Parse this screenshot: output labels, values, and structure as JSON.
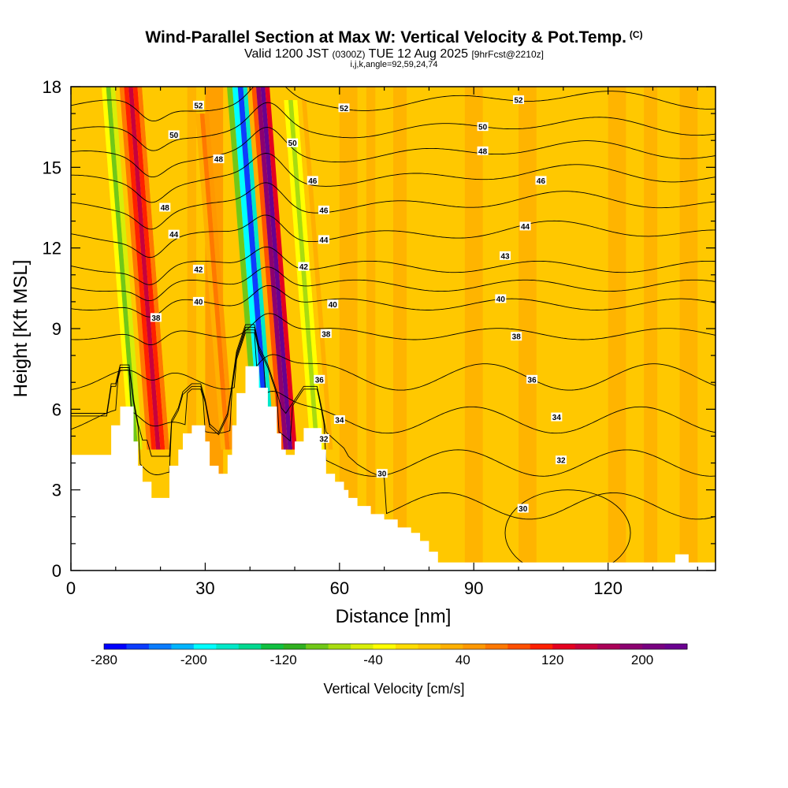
{
  "header": {
    "title": "Wind-Parallel Section at Max W: Vertical Velocity & Pot.Temp.",
    "copyright": "(C)",
    "valid_prefix": "Valid 1200 JST",
    "valid_utc": "(0300Z)",
    "valid_date": "TUE 12 Aug 2025",
    "forecast": "[9hrFcst@2210z]",
    "indices": "i,j,k,angle=92,59,24,74"
  },
  "chart_data": {
    "type": "heatmap",
    "title": "Wind-Parallel Section at Max W: Vertical Velocity & Pot.Temp.",
    "xlabel": "Distance [nm]",
    "ylabel": "Height [Kft MSL]",
    "xlim": [
      0,
      144
    ],
    "ylim": [
      0,
      18
    ],
    "x_ticks": [
      "0",
      "30",
      "60",
      "90",
      "120"
    ],
    "y_ticks": [
      "0",
      "3",
      "6",
      "9",
      "12",
      "15",
      "18"
    ],
    "colorbar": {
      "title": "Vertical Velocity [cm/s]",
      "min": -280,
      "max": 240,
      "step": 20,
      "tick_labels": [
        "-280",
        "-200",
        "-120",
        "-40",
        "40",
        "120",
        "200"
      ],
      "colors": [
        "#0000ff",
        "#0c3cff",
        "#0a7cff",
        "#00b4ff",
        "#00ffff",
        "#00e8c8",
        "#00d890",
        "#10c040",
        "#30b020",
        "#70c818",
        "#a8dc10",
        "#d8ee08",
        "#ffff00",
        "#ffdc00",
        "#ffc800",
        "#ffb000",
        "#ff9800",
        "#ff7800",
        "#ff5000",
        "#ff2000",
        "#e40020",
        "#c8003c",
        "#aa0058",
        "#8c0070",
        "#780080",
        "#6a0090"
      ]
    },
    "updrafts": [
      {
        "x_range": [
          12,
          20
        ],
        "peak": 160,
        "top_kft": 18
      },
      {
        "x_range": [
          42,
          46
        ],
        "peak": 220,
        "top_kft": 18
      },
      {
        "x_range": [
          50,
          54
        ],
        "peak": 40,
        "top_kft": 16
      }
    ],
    "downdrafts": [
      {
        "x_range": [
          36,
          42
        ],
        "peak": -260,
        "top_kft": 18
      },
      {
        "x_range": [
          11,
          13
        ],
        "peak": -100,
        "top_kft": 18
      },
      {
        "x_range": [
          52,
          56
        ],
        "peak": -80,
        "top_kft": 15
      }
    ],
    "terrain_kft": [
      [
        0,
        4.3
      ],
      [
        8,
        4.3
      ],
      [
        9,
        5.4
      ],
      [
        10,
        5.4
      ],
      [
        11,
        6.1
      ],
      [
        13,
        6.1
      ],
      [
        14,
        4.8
      ],
      [
        15,
        3.9
      ],
      [
        16,
        3.3
      ],
      [
        17,
        3.3
      ],
      [
        18,
        2.7
      ],
      [
        22,
        2.7
      ],
      [
        22,
        3.9
      ],
      [
        24,
        4.5
      ],
      [
        25,
        5.1
      ],
      [
        27,
        5.4
      ],
      [
        29,
        5.4
      ],
      [
        30,
        4.8
      ],
      [
        31,
        3.9
      ],
      [
        33,
        3.6
      ],
      [
        35,
        4.3
      ],
      [
        36,
        5.4
      ],
      [
        37,
        6.6
      ],
      [
        39,
        7.6
      ],
      [
        41,
        7.6
      ],
      [
        42,
        6.8
      ],
      [
        44,
        6.1
      ],
      [
        46,
        5.1
      ],
      [
        47,
        4.5
      ],
      [
        48,
        4.3
      ],
      [
        50,
        4.8
      ],
      [
        52,
        5.3
      ],
      [
        55,
        5.3
      ],
      [
        56,
        4.5
      ],
      [
        57,
        3.6
      ],
      [
        59,
        3.3
      ],
      [
        61,
        3.0
      ],
      [
        62,
        2.7
      ],
      [
        64,
        2.4
      ],
      [
        67,
        2.1
      ],
      [
        70,
        1.9
      ],
      [
        73,
        1.6
      ],
      [
        76,
        1.4
      ],
      [
        78,
        1.1
      ],
      [
        80,
        0.7
      ],
      [
        82,
        0.3
      ],
      [
        87,
        0.3
      ],
      [
        89,
        0.3
      ],
      [
        130,
        0.3
      ],
      [
        135,
        0.6
      ],
      [
        138,
        0.3
      ],
      [
        144,
        0.3
      ]
    ],
    "theta_contours": [
      {
        "label": "52",
        "y_kft": 17.3
      },
      {
        "label": "50",
        "y_kft": 16.3
      },
      {
        "label": "48",
        "y_kft": 15.4
      },
      {
        "label": "46",
        "y_kft": 14.5
      },
      {
        "label": "46",
        "y_kft": 13.5
      },
      {
        "label": "44",
        "y_kft": 12.4
      },
      {
        "label": "43",
        "y_kft": 11.3
      },
      {
        "label": "42",
        "y_kft": 10.6
      },
      {
        "label": "40",
        "y_kft": 9.9
      },
      {
        "label": "38",
        "y_kft": 8.8
      },
      {
        "label": "36",
        "y_kft": 7.2
      },
      {
        "label": "34",
        "y_kft": 5.6
      },
      {
        "label": "32",
        "y_kft": 4.0
      },
      {
        "label": "30",
        "y_kft": 2.4
      }
    ],
    "contour_labels": [
      {
        "text": "52",
        "x": 28.5,
        "y": 17.3
      },
      {
        "text": "52",
        "x": 61,
        "y": 17.2
      },
      {
        "text": "52",
        "x": 100,
        "y": 17.5
      },
      {
        "text": "50",
        "x": 23,
        "y": 16.2
      },
      {
        "text": "50",
        "x": 49.5,
        "y": 15.9
      },
      {
        "text": "50",
        "x": 92,
        "y": 16.5
      },
      {
        "text": "48",
        "x": 33,
        "y": 15.3
      },
      {
        "text": "48",
        "x": 92,
        "y": 15.6
      },
      {
        "text": "46",
        "x": 54,
        "y": 14.5
      },
      {
        "text": "46",
        "x": 105,
        "y": 14.5
      },
      {
        "text": "48",
        "x": 21,
        "y": 13.5
      },
      {
        "text": "46",
        "x": 56.5,
        "y": 13.4
      },
      {
        "text": "44",
        "x": 23,
        "y": 12.5
      },
      {
        "text": "44",
        "x": 56.5,
        "y": 12.3
      },
      {
        "text": "44",
        "x": 101.5,
        "y": 12.8
      },
      {
        "text": "43",
        "x": 97,
        "y": 11.7
      },
      {
        "text": "42",
        "x": 28.5,
        "y": 11.2
      },
      {
        "text": "42",
        "x": 52,
        "y": 11.3
      },
      {
        "text": "40",
        "x": 28.5,
        "y": 10.0
      },
      {
        "text": "40",
        "x": 58.5,
        "y": 9.9
      },
      {
        "text": "40",
        "x": 96,
        "y": 10.1
      },
      {
        "text": "38",
        "x": 19,
        "y": 9.4
      },
      {
        "text": "38",
        "x": 57,
        "y": 8.8
      },
      {
        "text": "38",
        "x": 99.5,
        "y": 8.7
      },
      {
        "text": "36",
        "x": 55.5,
        "y": 7.1
      },
      {
        "text": "36",
        "x": 103,
        "y": 7.1
      },
      {
        "text": "34",
        "x": 60,
        "y": 5.6
      },
      {
        "text": "34",
        "x": 108.5,
        "y": 5.7
      },
      {
        "text": "32",
        "x": 56.5,
        "y": 4.9
      },
      {
        "text": "32",
        "x": 109.5,
        "y": 4.1
      },
      {
        "text": "30",
        "x": 69.5,
        "y": 3.6
      },
      {
        "text": "30",
        "x": 101,
        "y": 2.3
      }
    ]
  }
}
